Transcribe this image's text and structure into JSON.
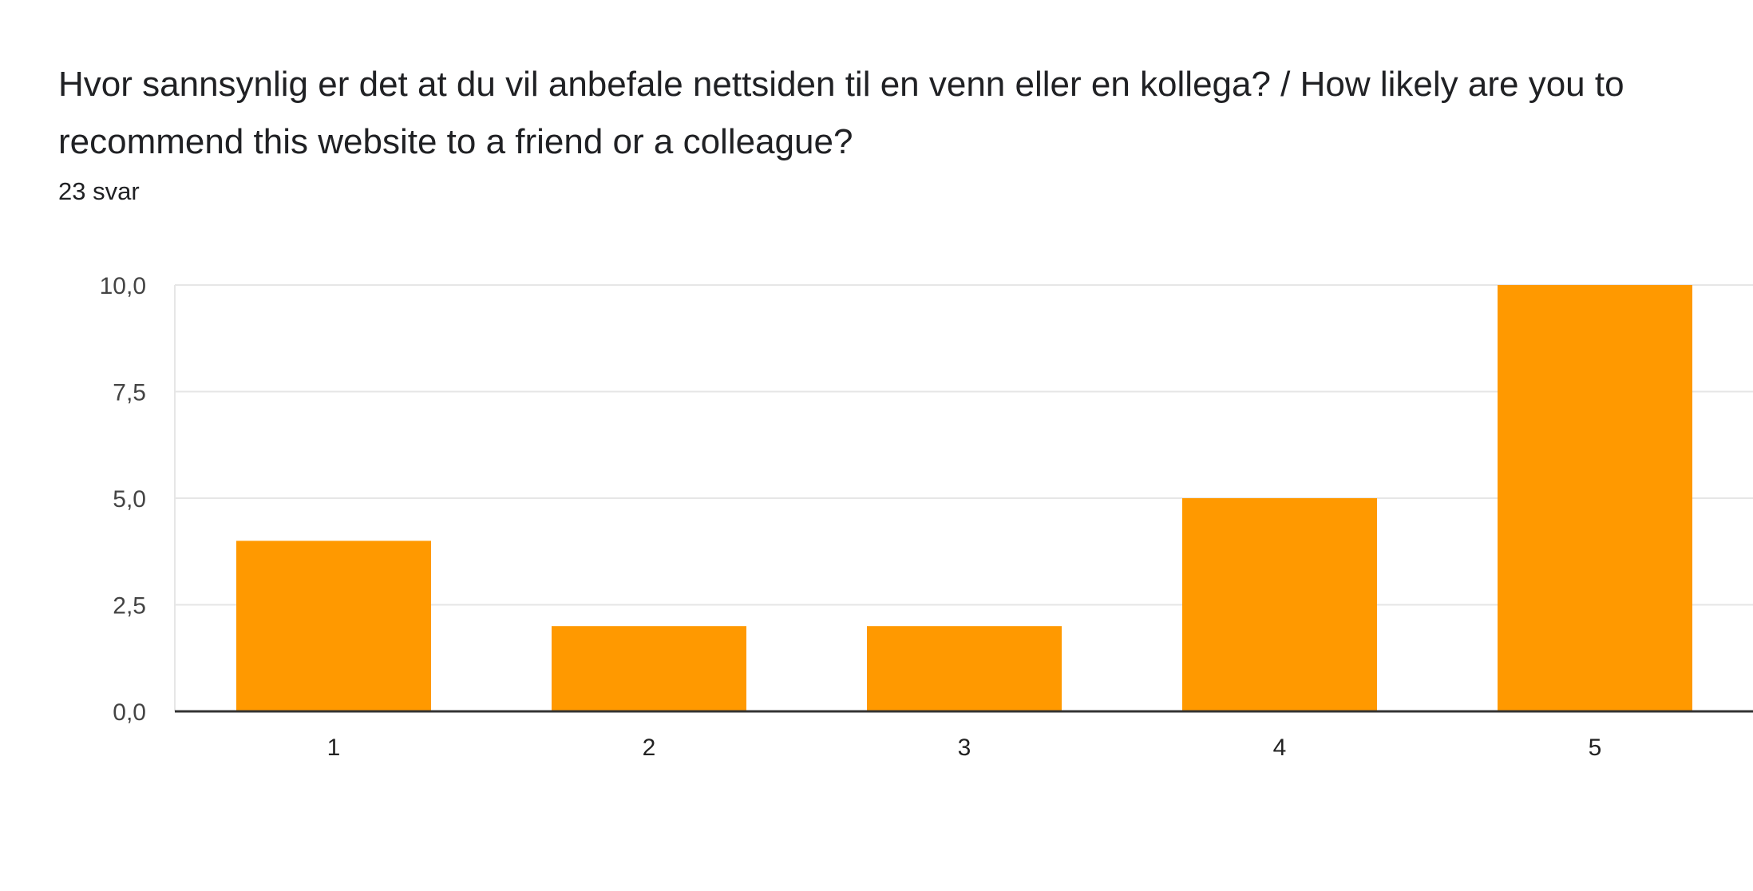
{
  "question": {
    "title": "Hvor sannsynlig er det at du vil anbefale nettsiden til en venn eller en kollega? / How likely are you to recommend this website to a friend or a colleague?",
    "response_count": "23 svar"
  },
  "colors": {
    "bar": "#ff9900",
    "gridline": "#e6e6e6",
    "baseline": "#333333"
  },
  "chart_data": {
    "type": "bar",
    "categories": [
      "1",
      "2",
      "3",
      "4",
      "5"
    ],
    "values": [
      4,
      2,
      2,
      5,
      10
    ],
    "ylim": [
      0,
      10
    ],
    "yticks": [
      0,
      2.5,
      5,
      7.5,
      10
    ],
    "ytick_labels": [
      "0,0",
      "2,5",
      "5,0",
      "7,5",
      "10,0"
    ],
    "grid": true,
    "legend": "none"
  }
}
